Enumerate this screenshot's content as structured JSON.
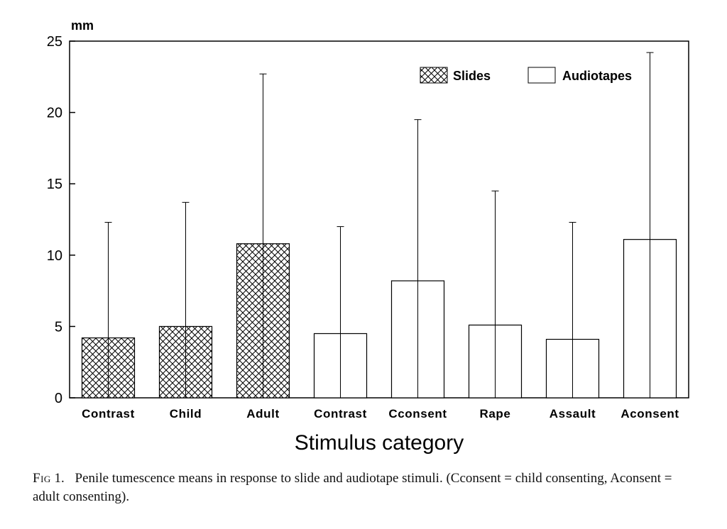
{
  "chart_data": {
    "type": "bar",
    "unit_label": "mm",
    "xlabel": "Stimulus category",
    "ylabel": "",
    "ylim": [
      0,
      25
    ],
    "yticks": [
      "0",
      "5",
      "10",
      "15",
      "20",
      "25"
    ],
    "categories": [
      "Contrast",
      "Child",
      "Adult",
      "Contrast",
      "Cconsent",
      "Rape",
      "Assault",
      "Aconsent"
    ],
    "values": [
      4.2,
      5.0,
      10.8,
      4.5,
      8.2,
      5.1,
      4.1,
      11.1
    ],
    "error_upper": [
      12.3,
      13.7,
      22.7,
      12.0,
      19.5,
      14.5,
      12.3,
      24.2
    ],
    "bar_style": [
      "Slides",
      "Slides",
      "Slides",
      "Audiotapes",
      "Audiotapes",
      "Audiotapes",
      "Audiotapes",
      "Audiotapes"
    ],
    "legend": {
      "position": "top-right",
      "entries": [
        {
          "label": "Slides",
          "pattern": "crosshatch"
        },
        {
          "label": "Audiotapes",
          "pattern": "open"
        }
      ]
    },
    "grid": false
  },
  "caption": {
    "lead": "Fig",
    "number": "1.",
    "text": "Penile tumescence means in response to slide and audiotape stimuli. (Cconsent = child consenting, Aconsent = adult consenting)."
  }
}
